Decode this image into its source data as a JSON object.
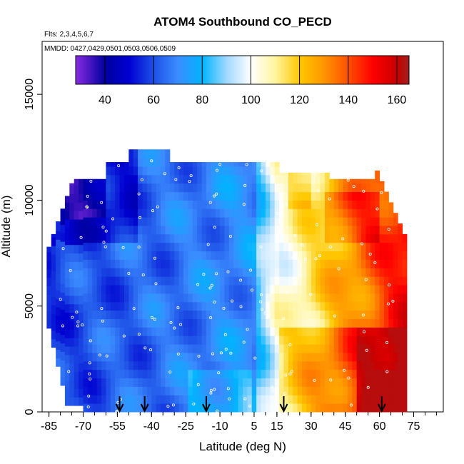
{
  "chart_data": {
    "type": "heatmap",
    "title": "ATOM4 Southbound CO_PECD",
    "flights_label": "Flts: 2,3,4,5,6,7",
    "dates_label": "MMDD: 0427,0429,0501,0503,0506,0509",
    "xlabel": "Latitude (deg N)",
    "ylabel": "Altitude (m)",
    "xlim": [
      -88,
      88
    ],
    "ylim": [
      0,
      17500
    ],
    "x_ticks": [
      -85,
      -70,
      -55,
      -40,
      -25,
      -10,
      5,
      15,
      30,
      45,
      60,
      75
    ],
    "x_tick_labels": [
      "-85",
      "-70",
      "-55",
      "-40",
      "-25",
      "-10",
      "5",
      "15",
      "30",
      "45",
      "60",
      "75"
    ],
    "y_ticks": [
      0,
      5000,
      10000,
      15000
    ],
    "y_tick_labels": [
      "0",
      "5000",
      "10000",
      "15000"
    ],
    "colorbar": {
      "range": [
        28,
        165
      ],
      "ticks": [
        40,
        60,
        80,
        100,
        120,
        140,
        160
      ],
      "tick_labels": [
        "40",
        "60",
        "80",
        "100",
        "120",
        "140",
        "160"
      ],
      "stops": [
        {
          "v": 28,
          "color": "#8a2be2"
        },
        {
          "v": 40,
          "color": "#0000a0"
        },
        {
          "v": 50,
          "color": "#0000d0"
        },
        {
          "v": 60,
          "color": "#1e50e6"
        },
        {
          "v": 70,
          "color": "#3c8cff"
        },
        {
          "v": 80,
          "color": "#00b4ff"
        },
        {
          "v": 90,
          "color": "#a0d8ff"
        },
        {
          "v": 100,
          "color": "#ffffff"
        },
        {
          "v": 110,
          "color": "#fff5a0"
        },
        {
          "v": 120,
          "color": "#ffc800"
        },
        {
          "v": 130,
          "color": "#ff9600"
        },
        {
          "v": 140,
          "color": "#ff5000"
        },
        {
          "v": 150,
          "color": "#ff0000"
        },
        {
          "v": 160,
          "color": "#c80000"
        },
        {
          "v": 165,
          "color": "#a02020"
        }
      ]
    },
    "profile_latitudes": [
      -54,
      -43,
      -16,
      18,
      61
    ],
    "grid": false
  }
}
